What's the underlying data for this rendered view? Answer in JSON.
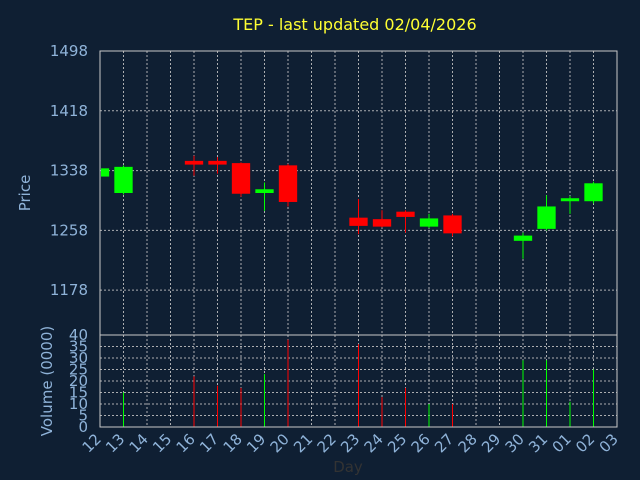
{
  "chart_data": {
    "type": "candlestick",
    "title": "TEP - last updated 02/04/2026",
    "ylabel": "Price",
    "volume_label": "Volume (0000)",
    "xlabel": "Day",
    "up_color": "#00ff00",
    "down_color": "#ff0000",
    "price_ylim": [
      1118,
      1498
    ],
    "price_ticks": [
      "1498",
      "1418",
      "1338",
      "1258",
      "1178"
    ],
    "price_tick_values": [
      1498,
      1418,
      1338,
      1258,
      1178
    ],
    "volume_ylim": [
      0,
      40
    ],
    "volume_ticks": [
      "40",
      "35",
      "30",
      "25",
      "20",
      "15",
      "10",
      "5",
      "0"
    ],
    "volume_tick_values": [
      40,
      35,
      30,
      25,
      20,
      15,
      10,
      5,
      0
    ],
    "x_ticks": [
      "12",
      "13",
      "14",
      "15",
      "16",
      "17",
      "18",
      "19",
      "20",
      "21",
      "22",
      "23",
      "24",
      "25",
      "26",
      "27",
      "28",
      "29",
      "30",
      "31",
      "01",
      "02",
      "03"
    ],
    "candles": [
      {
        "day": "12",
        "open": 1330,
        "close": 1341,
        "high": 1343,
        "low": 1328,
        "volume": 0
      },
      {
        "day": "13",
        "open": 1308,
        "close": 1343,
        "high": 1345,
        "low": 1306,
        "volume": 15
      },
      {
        "day": "16",
        "open": 1351,
        "close": 1346,
        "high": 1358,
        "low": 1331,
        "volume": 22
      },
      {
        "day": "17",
        "open": 1351,
        "close": 1346,
        "high": 1356,
        "low": 1334,
        "volume": 18
      },
      {
        "day": "18",
        "open": 1348,
        "close": 1307,
        "high": 1349,
        "low": 1303,
        "volume": 17
      },
      {
        "day": "19",
        "open": 1308,
        "close": 1313,
        "high": 1322,
        "low": 1284,
        "volume": 23
      },
      {
        "day": "20",
        "open": 1345,
        "close": 1296,
        "high": 1347,
        "low": 1290,
        "volume": 38
      },
      {
        "day": "23",
        "open": 1275,
        "close": 1264,
        "high": 1300,
        "low": 1253,
        "volume": 36
      },
      {
        "day": "24",
        "open": 1273,
        "close": 1263,
        "high": 1285,
        "low": 1262,
        "volume": 13
      },
      {
        "day": "25",
        "open": 1283,
        "close": 1276,
        "high": 1285,
        "low": 1255,
        "volume": 17
      },
      {
        "day": "26",
        "open": 1263,
        "close": 1274,
        "high": 1280,
        "low": 1261,
        "volume": 10
      },
      {
        "day": "27",
        "open": 1278,
        "close": 1254,
        "high": 1280,
        "low": 1250,
        "volume": 10
      },
      {
        "day": "30",
        "open": 1244,
        "close": 1251,
        "high": 1255,
        "low": 1220,
        "volume": 29
      },
      {
        "day": "31",
        "open": 1260,
        "close": 1290,
        "high": 1305,
        "low": 1258,
        "volume": 29
      },
      {
        "day": "01",
        "open": 1297,
        "close": 1301,
        "high": 1304,
        "low": 1280,
        "volume": 11
      },
      {
        "day": "02",
        "open": 1297,
        "close": 1321,
        "high": 1323,
        "low": 1294,
        "volume": 25
      }
    ]
  }
}
